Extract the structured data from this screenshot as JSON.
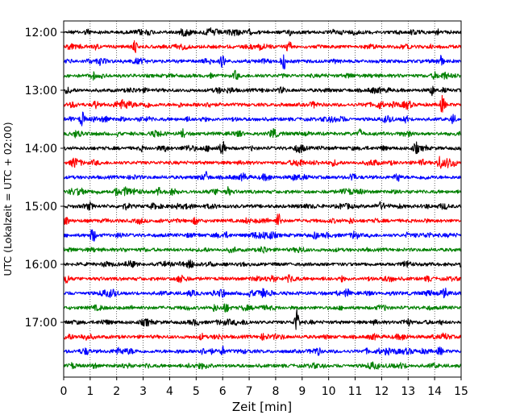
{
  "chart_data": {
    "type": "line",
    "title": "",
    "xlabel": "Zeit  [min]",
    "ylabel": "UTC (Lokalzeit = UTC + 02:00)",
    "xlim": [
      0,
      15
    ],
    "xticks": [
      "0",
      "1",
      "2",
      "3",
      "4",
      "5",
      "6",
      "7",
      "8",
      "9",
      "10",
      "11",
      "12",
      "13",
      "14",
      "15"
    ],
    "ytick_labels": [
      "12:00",
      "13:00",
      "14:00",
      "15:00",
      "16:00",
      "17:00"
    ],
    "grid": "vertical dotted",
    "trace_colors": [
      "#000000",
      "#ff0000",
      "#0000ff",
      "#008000"
    ],
    "series": [
      {
        "start": "12:00",
        "events": [
          [
            0.9,
            0.35
          ],
          [
            8.5,
            0.4
          ],
          [
            14.1,
            0.3
          ]
        ]
      },
      {
        "start": "12:15",
        "events": [
          [
            2.7,
            0.7
          ],
          [
            8.5,
            0.9
          ]
        ]
      },
      {
        "start": "12:30",
        "events": [
          [
            6.0,
            0.8
          ],
          [
            8.3,
            1.0
          ],
          [
            14.2,
            0.6
          ]
        ]
      },
      {
        "start": "12:45",
        "events": [
          [
            1.1,
            0.45
          ],
          [
            6.5,
            0.6
          ],
          [
            14.0,
            0.35
          ]
        ]
      },
      {
        "start": "13:00",
        "events": [
          [
            13.9,
            0.55
          ]
        ]
      },
      {
        "start": "13:15",
        "events": [
          [
            1.2,
            0.5
          ],
          [
            14.3,
            1.0
          ]
        ]
      },
      {
        "start": "13:30",
        "events": [
          [
            0.7,
            0.9
          ],
          [
            12.9,
            0.5
          ],
          [
            14.7,
            0.5
          ]
        ]
      },
      {
        "start": "13:45",
        "events": [
          [
            4.5,
            0.5
          ],
          [
            7.9,
            0.7
          ],
          [
            11.2,
            0.6
          ]
        ]
      },
      {
        "start": "14:00",
        "events": [
          [
            6.0,
            0.9
          ],
          [
            13.3,
            0.5
          ]
        ]
      },
      {
        "start": "14:15",
        "events": [
          [
            0.4,
            0.5
          ],
          [
            13.5,
            0.45
          ],
          [
            14.2,
            0.6
          ]
        ]
      },
      {
        "start": "14:30",
        "events": [
          [
            5.4,
            0.6
          ],
          [
            10.9,
            0.7
          ],
          [
            12.6,
            0.65
          ]
        ]
      },
      {
        "start": "14:45",
        "events": [
          [
            2.0,
            0.45
          ],
          [
            3.6,
            0.4
          ],
          [
            6.2,
            0.55
          ]
        ]
      },
      {
        "start": "15:00",
        "events": [
          [
            1.0,
            0.35
          ]
        ]
      },
      {
        "start": "15:15",
        "events": [
          [
            0.1,
            0.5
          ],
          [
            8.1,
            0.9
          ]
        ]
      },
      {
        "start": "15:30",
        "events": [
          [
            1.1,
            1.0
          ],
          [
            9.5,
            0.4
          ],
          [
            11.0,
            0.4
          ]
        ]
      },
      {
        "start": "15:45",
        "events": [
          [
            7.5,
            0.3
          ]
        ]
      },
      {
        "start": "16:00",
        "events": [
          [
            12.9,
            0.45
          ],
          [
            15.0,
            0.3
          ]
        ]
      },
      {
        "start": "16:15",
        "events": [
          [
            0.1,
            0.5
          ]
        ]
      },
      {
        "start": "16:30",
        "events": [
          [
            10.7,
            0.5
          ],
          [
            14.4,
            0.55
          ]
        ]
      },
      {
        "start": "16:45",
        "events": [
          [
            5.7,
            0.4
          ]
        ]
      },
      {
        "start": "17:00",
        "events": [
          [
            8.8,
            1.6
          ],
          [
            13.0,
            0.4
          ]
        ]
      },
      {
        "start": "17:15",
        "events": [
          [
            5.2,
            0.35
          ]
        ]
      },
      {
        "start": "17:30",
        "events": [
          [
            6.0,
            0.55
          ],
          [
            9.6,
            0.4
          ],
          [
            12.2,
            0.4
          ],
          [
            14.2,
            0.5
          ]
        ]
      },
      {
        "start": "17:45",
        "events": [
          [
            2.4,
            0.3
          ]
        ]
      }
    ]
  }
}
